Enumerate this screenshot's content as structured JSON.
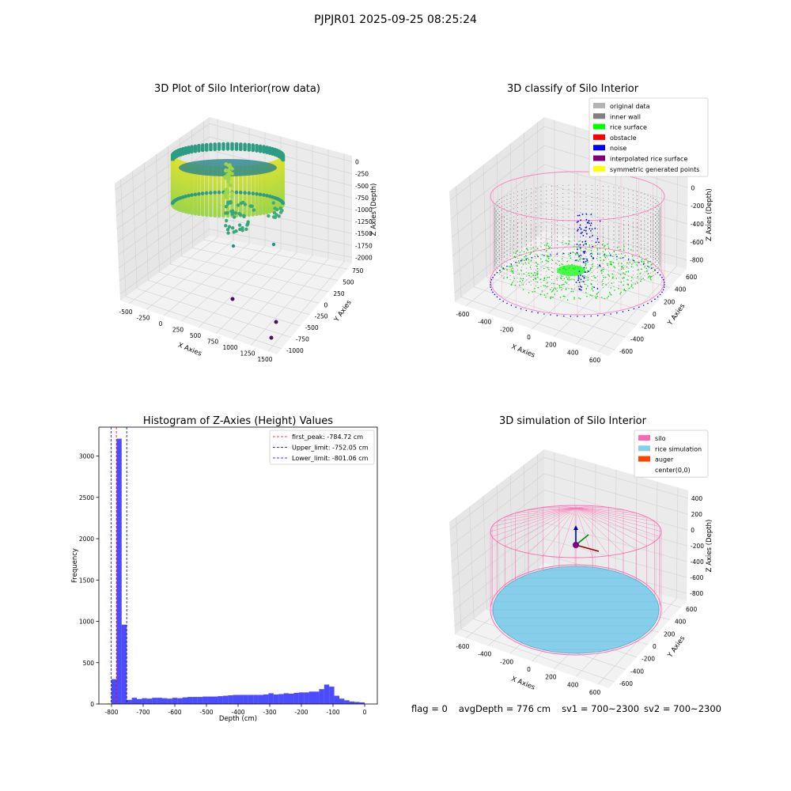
{
  "suptitle": "PJPJR01 2025-09-25 08:25:24",
  "footer": {
    "flag": "flag = 0",
    "avg": "avgDepth = 776 cm",
    "sv1": "sv1 = 700~2300",
    "sv2": "sv2 = 700~2300"
  },
  "chart_data": [
    {
      "type": "scatter3d",
      "title": "3D Plot of Silo Interior(row data)",
      "xlabel": "X Axies",
      "ylabel": "Y Axies",
      "zlabel": "Z Axies (Depth)",
      "xticks": [
        "-500",
        "-250",
        "0",
        "250",
        "500",
        "750",
        "1000",
        "1250",
        "1500"
      ],
      "yticks": [
        "-1000",
        "-750",
        "-500",
        "-250",
        "0",
        "250",
        "500",
        "750"
      ],
      "zticks": [
        "0",
        "-250",
        "-500",
        "-750",
        "-1000",
        "-1250",
        "-1500",
        "-1750",
        "-2000"
      ],
      "colormap": "viridis",
      "outliers": [
        {
          "x": 1350,
          "y": -900,
          "z": -2000
        },
        {
          "x": 1250,
          "y": -1000,
          "z": -2000
        },
        {
          "x": 700,
          "y": -300,
          "z": -2000
        }
      ]
    },
    {
      "type": "scatter3d",
      "title": "3D classify of Silo Interior",
      "xlabel": "X Axies",
      "ylabel": "Y Axies",
      "zlabel": "Z Axies (Depth)",
      "xticks": [
        "-600",
        "-400",
        "-200",
        "0",
        "200",
        "400",
        "600"
      ],
      "yticks": [
        "-600",
        "-400",
        "-200",
        "0",
        "200",
        "400",
        "600"
      ],
      "zticks": [
        "200",
        "0",
        "-200",
        "-400",
        "-600",
        "-800"
      ],
      "legend": [
        {
          "label": "original data",
          "color": "#b3b3b3"
        },
        {
          "label": "inner wall",
          "color": "#808080"
        },
        {
          "label": "rice surface",
          "color": "#00ff00"
        },
        {
          "label": "obstacle",
          "color": "#ff0000"
        },
        {
          "label": "noise",
          "color": "#0000ff"
        },
        {
          "label": "interpolated rice surface",
          "color": "#800080"
        },
        {
          "label": "symmetric generated points",
          "color": "#ffff00"
        }
      ],
      "legend_loc": "upper right"
    },
    {
      "type": "bar",
      "title": "Histogram of Z-Axies (Height) Values",
      "xlabel": "Depth (cm)",
      "ylabel": "Frequency",
      "xlim": [
        -840,
        40
      ],
      "ylim": [
        0,
        3350
      ],
      "xticks": [
        -800,
        -700,
        -600,
        -500,
        -400,
        -300,
        -200,
        -100,
        0
      ],
      "yticks": [
        0,
        500,
        1000,
        1500,
        2000,
        2500,
        3000
      ],
      "bin_width": 16,
      "bins": [
        {
          "x": -816,
          "v": 5
        },
        {
          "x": -800,
          "v": 300
        },
        {
          "x": -784,
          "v": 3210
        },
        {
          "x": -768,
          "v": 960
        },
        {
          "x": -752,
          "v": 50
        },
        {
          "x": -736,
          "v": 75
        },
        {
          "x": -720,
          "v": 60
        },
        {
          "x": -704,
          "v": 70
        },
        {
          "x": -688,
          "v": 65
        },
        {
          "x": -672,
          "v": 75
        },
        {
          "x": -656,
          "v": 75
        },
        {
          "x": -640,
          "v": 70
        },
        {
          "x": -624,
          "v": 65
        },
        {
          "x": -608,
          "v": 75
        },
        {
          "x": -592,
          "v": 70
        },
        {
          "x": -576,
          "v": 80
        },
        {
          "x": -560,
          "v": 85
        },
        {
          "x": -544,
          "v": 85
        },
        {
          "x": -528,
          "v": 85
        },
        {
          "x": -512,
          "v": 90
        },
        {
          "x": -496,
          "v": 90
        },
        {
          "x": -480,
          "v": 90
        },
        {
          "x": -464,
          "v": 95
        },
        {
          "x": -448,
          "v": 100
        },
        {
          "x": -432,
          "v": 105
        },
        {
          "x": -416,
          "v": 110
        },
        {
          "x": -400,
          "v": 110
        },
        {
          "x": -384,
          "v": 110
        },
        {
          "x": -368,
          "v": 110
        },
        {
          "x": -352,
          "v": 110
        },
        {
          "x": -336,
          "v": 110
        },
        {
          "x": -320,
          "v": 115
        },
        {
          "x": -304,
          "v": 130
        },
        {
          "x": -288,
          "v": 115
        },
        {
          "x": -272,
          "v": 120
        },
        {
          "x": -256,
          "v": 130
        },
        {
          "x": -240,
          "v": 125
        },
        {
          "x": -224,
          "v": 135
        },
        {
          "x": -208,
          "v": 140
        },
        {
          "x": -192,
          "v": 140
        },
        {
          "x": -176,
          "v": 150
        },
        {
          "x": -160,
          "v": 150
        },
        {
          "x": -144,
          "v": 180
        },
        {
          "x": -128,
          "v": 235
        },
        {
          "x": -112,
          "v": 210
        },
        {
          "x": -96,
          "v": 100
        },
        {
          "x": -80,
          "v": 65
        },
        {
          "x": -64,
          "v": 45
        },
        {
          "x": -48,
          "v": 30
        },
        {
          "x": -32,
          "v": 25
        },
        {
          "x": -16,
          "v": 20
        }
      ],
      "vlines": [
        {
          "label": "first_peak: -784.72 cm",
          "x": -784.72,
          "color": "#ff0000"
        },
        {
          "label": "Upper_limit: -752.05 cm",
          "x": -752.05,
          "color": "#000080"
        },
        {
          "label": "Lower_limit: -801.06 cm",
          "x": -801.06,
          "color": "#0000ff"
        }
      ],
      "bar_color": "#0000ff",
      "legend_loc": "upper right"
    },
    {
      "type": "surface3d",
      "title": "3D simulation of Silo Interior",
      "xlabel": "X Axies",
      "ylabel": "Y Axies",
      "zlabel": "Z Axies (Depth)",
      "xticks": [
        "-600",
        "-400",
        "-200",
        "0",
        "200",
        "400",
        "600"
      ],
      "yticks": [
        "-600",
        "-400",
        "-200",
        "0",
        "200",
        "400",
        "600"
      ],
      "zticks": [
        "400",
        "200",
        "0",
        "-200",
        "-400",
        "-600",
        "-800"
      ],
      "legend": [
        {
          "label": "silo",
          "color": "#ff69b4"
        },
        {
          "label": "rice simulation",
          "color": "#87ceeb"
        },
        {
          "label": "auger",
          "color": "#ff4500"
        },
        {
          "label": "center(0,0)",
          "color": ""
        }
      ],
      "legend_loc": "upper right"
    }
  ]
}
